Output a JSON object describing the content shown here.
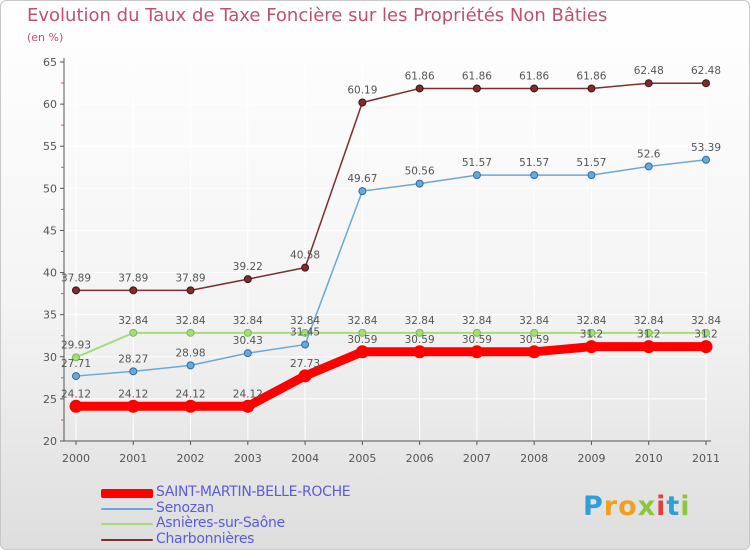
{
  "header": {
    "title": "Evolution du Taux de Taxe Foncière sur les Propriétés Non Bâties",
    "unit": "(en %)"
  },
  "logo": {
    "text": "Proxiti",
    "letters": [
      {
        "ch": "P",
        "color": "#2f9fd8"
      },
      {
        "ch": "r",
        "color": "#f0a020"
      },
      {
        "ch": "o",
        "color": "#f0a020"
      },
      {
        "ch": "x",
        "color": "#8cc63f"
      },
      {
        "ch": "i",
        "color": "#e04040"
      },
      {
        "ch": "t",
        "color": "#2f9fd8"
      },
      {
        "ch": "i",
        "color": "#8cc63f"
      }
    ]
  },
  "colors": {
    "axis": "#555555",
    "grid": "#ffffff",
    "tick_red": "#e05050",
    "label_text": "#555555"
  },
  "chart_data": {
    "type": "line",
    "title": "Evolution du Taux de Taxe Foncière sur les Propriétés Non Bâties",
    "ylabel": "(en %)",
    "xlabel": "",
    "x": [
      "2000",
      "2001",
      "2002",
      "2003",
      "2004",
      "2005",
      "2006",
      "2007",
      "2008",
      "2009",
      "2010",
      "2011"
    ],
    "ylim": [
      20,
      65
    ],
    "yticks": [
      20,
      25,
      30,
      35,
      40,
      45,
      50,
      55,
      60,
      65
    ],
    "grid": true,
    "legend_position": "bottom-left",
    "series": [
      {
        "name": "SAINT-MARTIN-BELLE-ROCHE",
        "color": "#ff0000",
        "values": [
          24.12,
          24.12,
          24.12,
          24.12,
          27.73,
          30.59,
          30.59,
          30.59,
          30.59,
          31.2,
          31.2,
          31.2
        ],
        "labels": [
          "24.12",
          "24.12",
          "24.12",
          "24.12",
          "27.73",
          "30.59",
          "30.59",
          "30.59",
          "30.59",
          "31.2",
          "31.2",
          "31.2"
        ]
      },
      {
        "name": "Senozan",
        "color": "#6aa8d8",
        "values": [
          27.71,
          28.27,
          28.98,
          30.43,
          31.45,
          49.67,
          50.56,
          51.57,
          51.57,
          51.57,
          52.6,
          53.39
        ],
        "labels": [
          "27.71",
          "28.27",
          "28.98",
          "30.43",
          "31.45",
          "49.67",
          "50.56",
          "51.57",
          "51.57",
          "51.57",
          "52.6",
          "53.39"
        ]
      },
      {
        "name": "Asnières-sur-Saône",
        "color": "#a6dc7c",
        "values": [
          29.93,
          32.84,
          32.84,
          32.84,
          32.84,
          32.84,
          32.84,
          32.84,
          32.84,
          32.84,
          32.84,
          32.84
        ],
        "labels": [
          "29.93",
          "32.84",
          "32.84",
          "32.84",
          "32.84",
          "32.84",
          "32.84",
          "32.84",
          "32.84",
          "32.84",
          "32.84",
          "32.84"
        ]
      },
      {
        "name": "Charbonnières",
        "color": "#7a2e2e",
        "values": [
          37.89,
          37.89,
          37.89,
          39.22,
          40.58,
          60.19,
          61.86,
          61.86,
          61.86,
          61.86,
          62.48,
          62.48
        ],
        "labels": [
          "37.89",
          "37.89",
          "37.89",
          "39.22",
          "40.58",
          "60.19",
          "61.86",
          "61.86",
          "61.86",
          "61.86",
          "62.48",
          "62.48"
        ]
      }
    ]
  }
}
